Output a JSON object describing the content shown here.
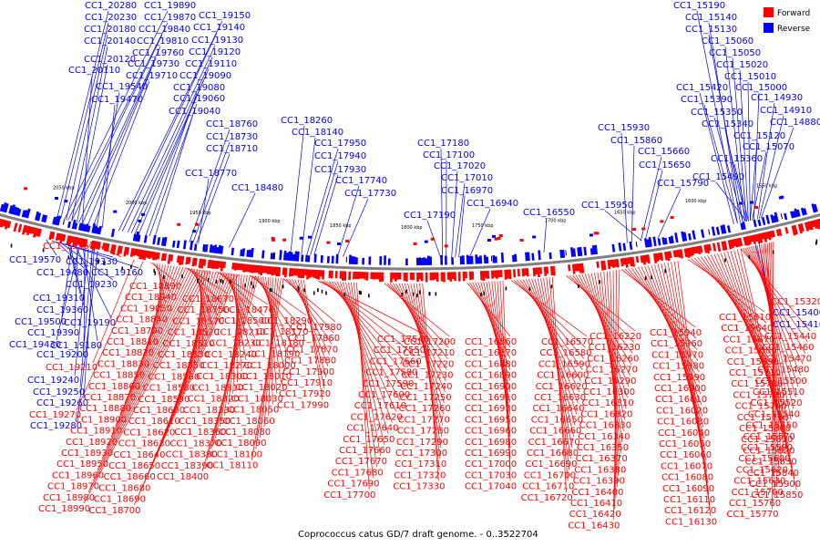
{
  "caption": "Coprococcus catus GD/7 draft genome. - 0..3522704",
  "colors": {
    "forward": "#ff0000",
    "reverse": "#0000ff",
    "backbone": "#808080"
  },
  "legend": [
    {
      "label": "Forward",
      "color": "#ff0000"
    },
    {
      "label": "Reverse",
      "color": "#0000ff"
    }
  ],
  "scale_labels": [
    "2050 kbp",
    "2000 kbp",
    "1950 kbp",
    "1900 kbp",
    "1850 kbp",
    "1800 kbp",
    "1750 kbp",
    "1700 kbp",
    "1650 kbp",
    "1600 kbp",
    "1550 kbp"
  ],
  "reverse_top_labels": [
    "CC1_20280",
    "CC1_19890",
    "CC1_20230",
    "CC1_19870",
    "CC1_19150",
    "CC1_20180",
    "CC1_19840",
    "CC1_19140",
    "CC1_20140",
    "CC1_19810",
    "CC1_19130",
    "CC1_19760",
    "CC1_19120",
    "CC1_20120",
    "CC1_19730",
    "CC1_19110",
    "CC1_20110",
    "CC1_19710",
    "CC1_19090",
    "CC1_19540",
    "CC1_19080",
    "CC1_19470",
    "CC1_19060",
    "CC1_19040",
    "CC1_18760",
    "CC1_18730",
    "CC1_18710",
    "CC1_18770",
    "CC1_18480",
    "CC1_18260",
    "CC1_18140",
    "CC1_17950",
    "CC1_17940",
    "CC1_17930",
    "CC1_17740",
    "CC1_17730",
    "CC1_17180",
    "CC1_17100",
    "CC1_17020",
    "CC1_17010",
    "CC1_16970",
    "CC1_16940",
    "CC1_17190",
    "CC1_16550",
    "CC1_15930",
    "CC1_15860",
    "CC1_15660",
    "CC1_15650",
    "CC1_15790",
    "CC1_15950",
    "CC1_15190",
    "CC1_15140",
    "CC1_15130",
    "CC1_15060",
    "CC1_15050",
    "CC1_15020",
    "CC1_15010",
    "CC1_15420",
    "CC1_15000",
    "CC1_15390",
    "CC1_14930",
    "CC1_15350",
    "CC1_14910",
    "CC1_15340",
    "CC1_14880",
    "CC1_15120",
    "CC1_15070",
    "CC1_15360",
    "CC1_15490"
  ],
  "reverse_left_labels": [
    "CC1_19570",
    "CC1_19330",
    "CC1_19480",
    "CC1_19160",
    "CC1_19230",
    "CC1_19310",
    "CC1_19360",
    "CC1_19500",
    "CC1_19190",
    "CC1_19390",
    "CC1_19430",
    "CC1_19180",
    "CC1_19200",
    "CC1_19240",
    "CC1_19250",
    "CC1_19260",
    "CC1_19280"
  ],
  "reverse_right_labels": [
    "CC1_15400",
    "CC1_15410"
  ],
  "forward_left_labels": [
    "CC1_19560",
    "CC1_19210",
    "CC1_19270"
  ],
  "forward_right_labels": [
    "CC1_15320"
  ],
  "forward_columns": [
    [
      "CC1_18890",
      "CC1_18940",
      "CC1_19050",
      "CC1_18840",
      "CC1_18790",
      "CC1_18810",
      "CC1_18820",
      "CC1_18830",
      "CC1_18850",
      "CC1_18860",
      "CC1_18870",
      "CC1_18880",
      "CC1_18900",
      "CC1_18910",
      "CC1_18920",
      "CC1_18930",
      "CC1_18950",
      "CC1_18960",
      "CC1_18970",
      "CC1_18980",
      "CC1_18990"
    ],
    [
      "CC1_18670",
      "CC1_18750",
      "CC1_18570",
      "CC1_18520",
      "CC1_18510",
      "CC1_18530",
      "CC1_18550",
      "CC1_18560",
      "CC1_18580",
      "CC1_18590",
      "CC1_18600",
      "CC1_18610",
      "CC1_18620",
      "CC1_18630",
      "CC1_18640",
      "CC1_18650",
      "CC1_18660",
      "CC1_18680",
      "CC1_18690",
      "CC1_18700"
    ],
    [
      "CC1_18470",
      "CC1_18500",
      "CC1_18210",
      "CC1_18230",
      "CC1_18240",
      "CC1_18270",
      "CC1_18300",
      "CC1_18310",
      "CC1_18320",
      "CC1_18330",
      "CC1_18350",
      "CC1_18360",
      "CC1_18370",
      "CC1_18380",
      "CC1_18390",
      "CC1_18400"
    ],
    [
      "CC1_18290",
      "CC1_18170",
      "CC1_18180",
      "CC1_18190",
      "CC1_18000",
      "CC1_18010",
      "CC1_18020",
      "CC1_18030",
      "CC1_18050",
      "CC1_18060",
      "CC1_18080",
      "CC1_18090",
      "CC1_18100",
      "CC1_18110"
    ],
    [
      "CC1_17980",
      "CC1_17860",
      "CC1_17870",
      "CC1_17880",
      "CC1_17900",
      "CC1_17910",
      "CC1_17920",
      "CC1_17990"
    ],
    [
      "CC1_17540",
      "CC1_17550",
      "CC1_17560",
      "CC1_17580",
      "CC1_17590",
      "CC1_17600",
      "CC1_17610",
      "CC1_17620",
      "CC1_17640",
      "CC1_17650",
      "CC1_17660",
      "CC1_17670",
      "CC1_17680",
      "CC1_17690",
      "CC1_17700"
    ],
    [
      "CC1_17200",
      "CC1_17210",
      "CC1_17220",
      "CC1_17230",
      "CC1_17240",
      "CC1_17250",
      "CC1_17260",
      "CC1_17270",
      "CC1_17280",
      "CC1_17290",
      "CC1_17300",
      "CC1_17310",
      "CC1_17320",
      "CC1_17330"
    ],
    [
      "CC1_16860",
      "CC1_16870",
      "CC1_16880",
      "CC1_16890",
      "CC1_16900",
      "CC1_16910",
      "CC1_16930",
      "CC1_16950",
      "CC1_16960",
      "CC1_16980",
      "CC1_16990",
      "CC1_17000",
      "CC1_17030",
      "CC1_17040"
    ],
    [
      "CC1_16570",
      "CC1_16580",
      "CC1_16590",
      "CC1_16600",
      "CC1_16620",
      "CC1_16630",
      "CC1_16640",
      "CC1_16650",
      "CC1_16660",
      "CC1_16670",
      "CC1_16680",
      "CC1_16690",
      "CC1_16700",
      "CC1_16710",
      "CC1_16720"
    ],
    [
      "CC1_16220",
      "CC1_16230",
      "CC1_16260",
      "CC1_16270",
      "CC1_16290",
      "CC1_16300",
      "CC1_16310",
      "CC1_16320",
      "CC1_16330",
      "CC1_16340",
      "CC1_16350",
      "CC1_16370",
      "CC1_16380",
      "CC1_16390",
      "CC1_16400",
      "CC1_16410",
      "CC1_16420",
      "CC1_16430"
    ],
    [
      "CC1_15940",
      "CC1_15960",
      "CC1_15970",
      "CC1_15980",
      "CC1_15990",
      "CC1_16000",
      "CC1_16010",
      "CC1_16020",
      "CC1_16030",
      "CC1_16040",
      "CC1_16050",
      "CC1_16060",
      "CC1_16070",
      "CC1_16080",
      "CC1_16090",
      "CC1_16110",
      "CC1_16120",
      "CC1_16130"
    ],
    [
      "CC1_15610",
      "CC1_15640",
      "CC1_15670",
      "CC1_15680",
      "CC1_15690",
      "CC1_15710",
      "CC1_15720",
      "CC1_15730",
      "CC1_15740",
      "CC1_15750",
      "CC1_15800",
      "CC1_15810",
      "CC1_15820",
      "CC1_15830",
      "CC1_15840",
      "CC1_15900",
      "CC1_15850"
    ],
    [
      "CC1_15440",
      "CC1_15460",
      "CC1_15470",
      "CC1_15480",
      "CC1_15500",
      "CC1_15510",
      "CC1_15520",
      "CC1_15540",
      "CC1_15550",
      "CC1_15570",
      "CC1_15590",
      "CC1_15600",
      "CC1_15620",
      "CC1_15630",
      "CC1_15700",
      "CC1_15760",
      "CC1_15770"
    ]
  ]
}
